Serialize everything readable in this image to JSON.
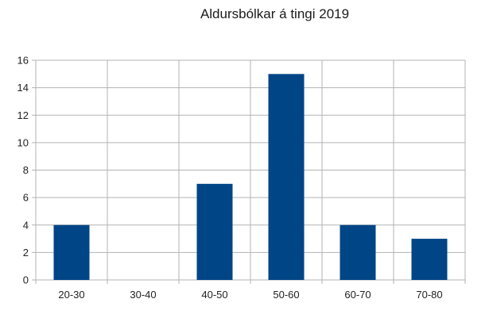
{
  "chart_data": {
    "type": "bar",
    "title": "Aldursbólkar á tingi 2019",
    "xlabel": "",
    "ylabel": "",
    "categories": [
      "20-30",
      "30-40",
      "40-50",
      "50-60",
      "60-70",
      "70-80"
    ],
    "values": [
      4,
      0,
      7,
      15,
      4,
      3
    ],
    "ylim": [
      0,
      16
    ],
    "yticks": [
      0,
      2,
      4,
      6,
      8,
      10,
      12,
      14,
      16
    ],
    "grid": true,
    "legend": "none",
    "bar_color": "#004586",
    "grid_color": "#b3b3b3"
  }
}
